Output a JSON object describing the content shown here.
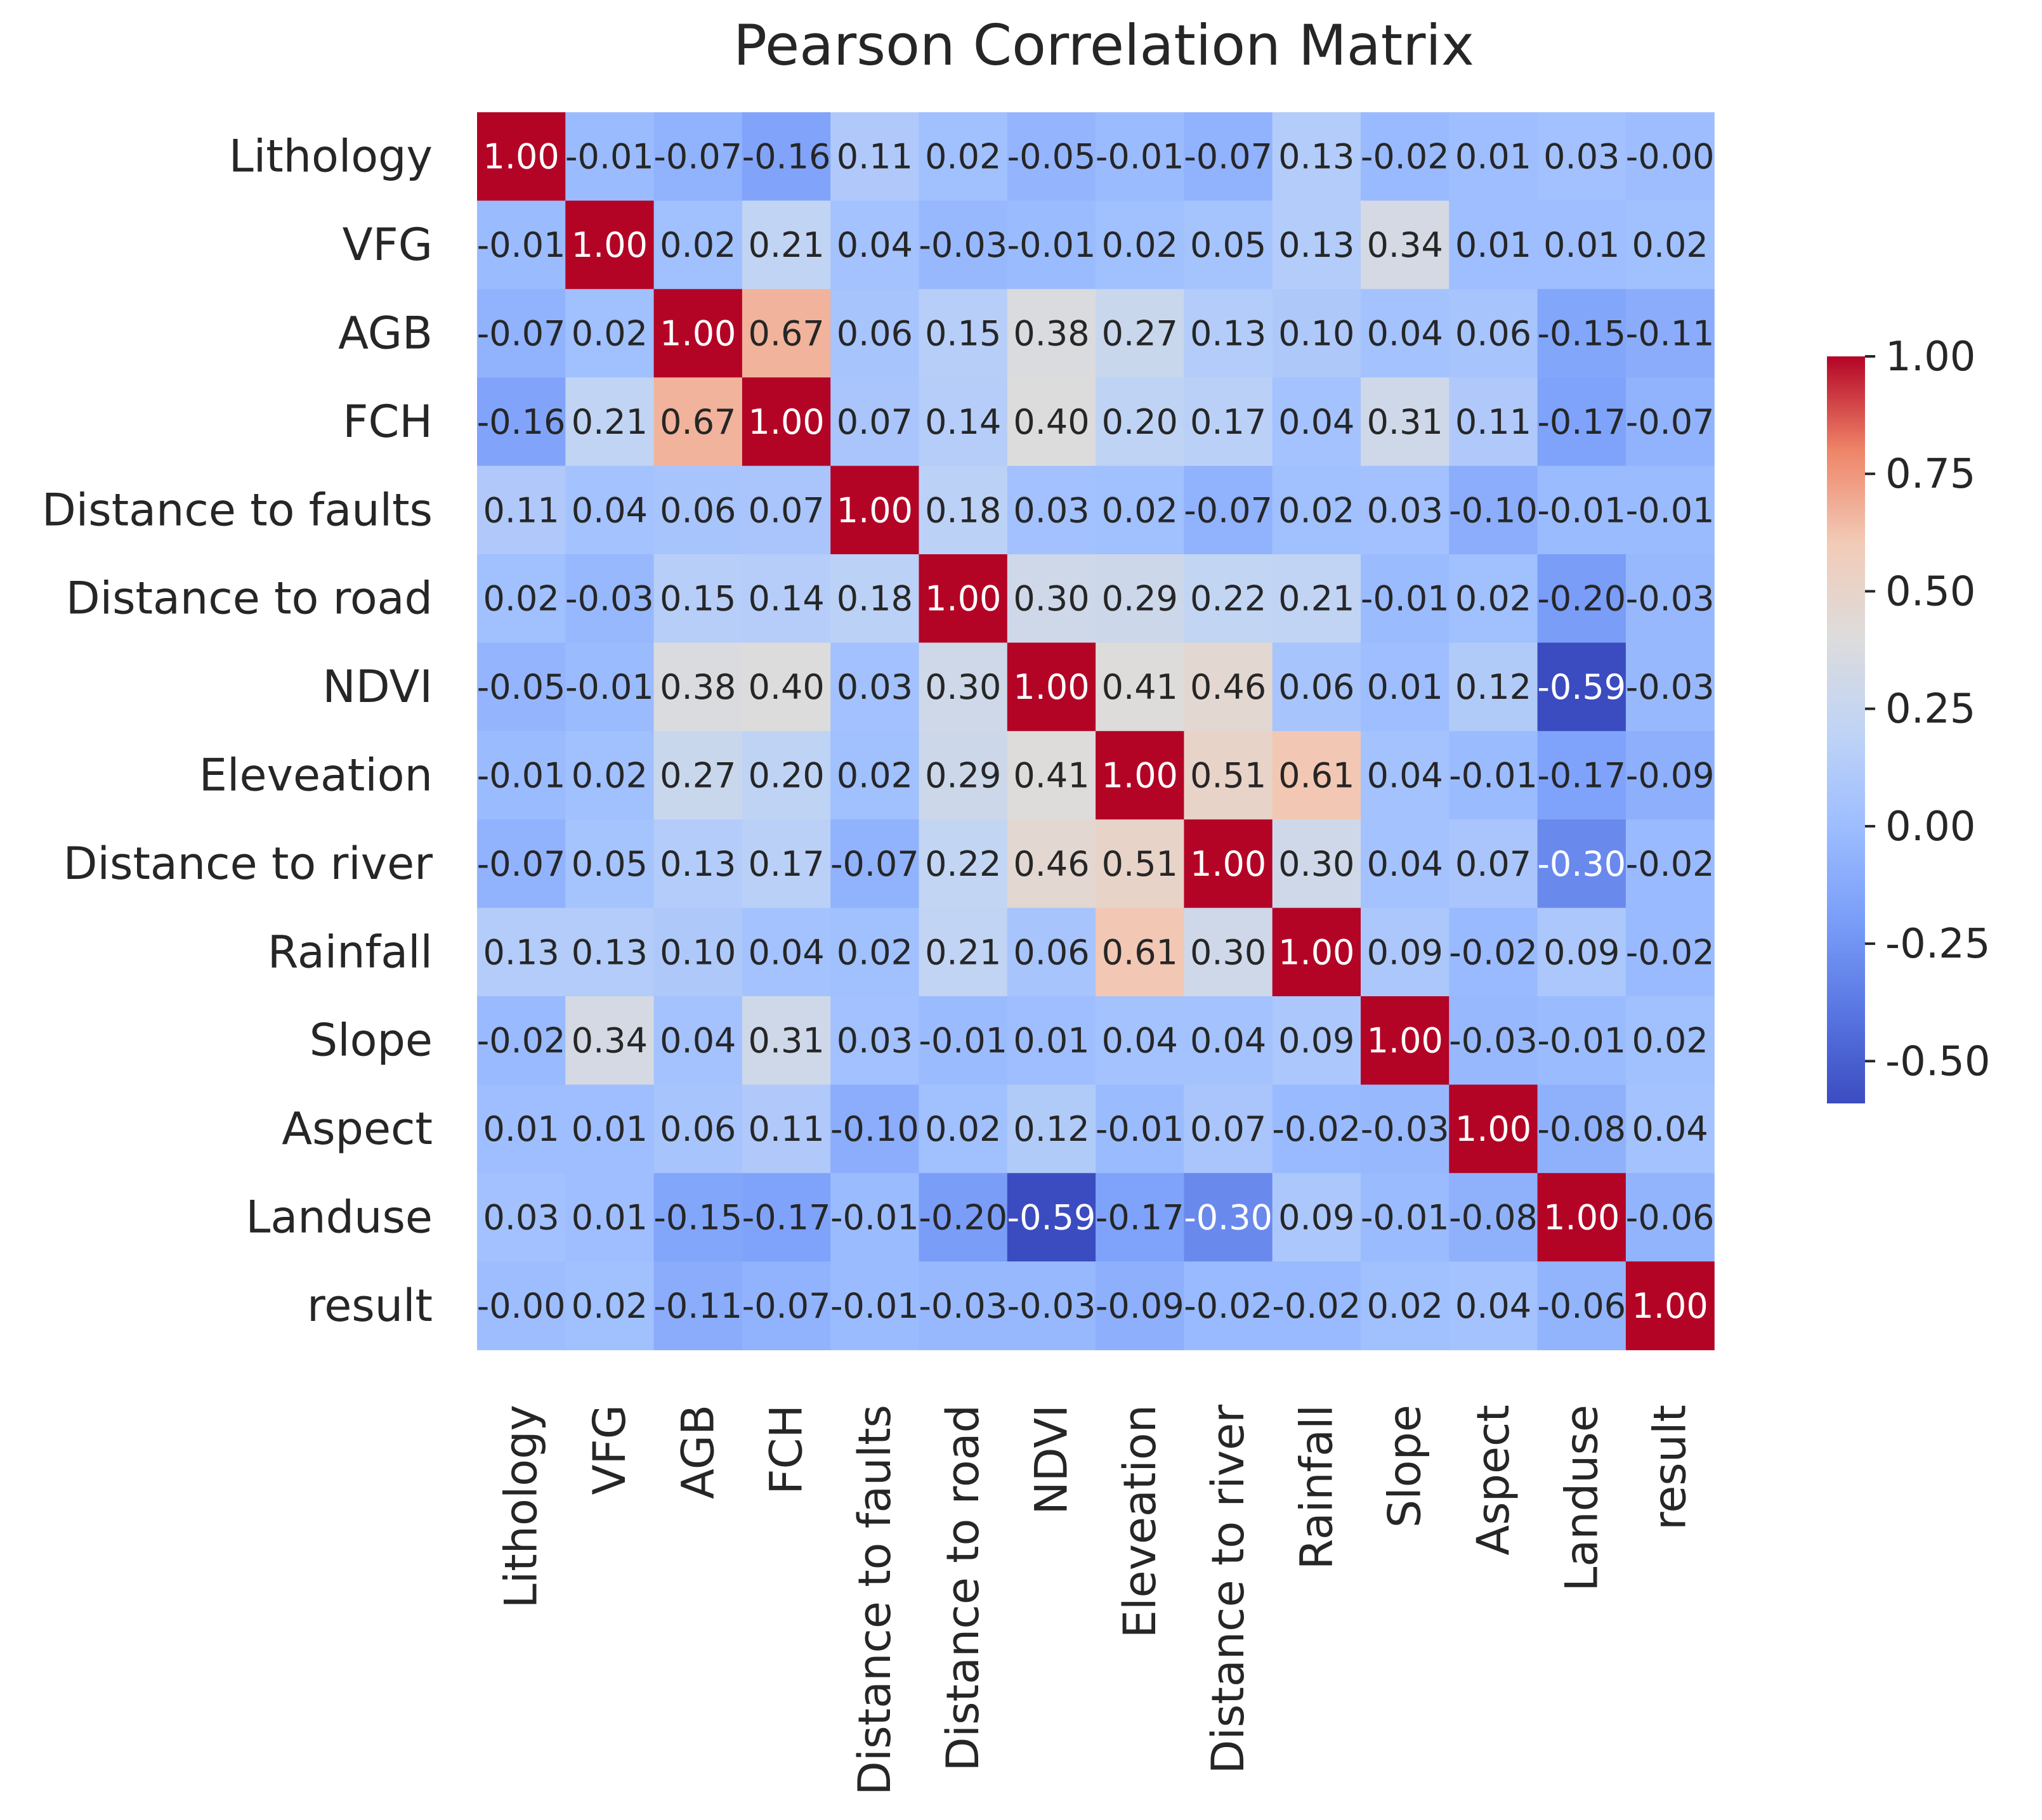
{
  "chart_data": {
    "type": "heatmap",
    "title": "Pearson Correlation Matrix",
    "labels": [
      "Lithology",
      "VFG",
      "AGB",
      "FCH",
      "Distance to faults",
      "Distance to road",
      "NDVI",
      "Eleveation",
      "Distance to river",
      "Rainfall",
      "Slope",
      "Aspect",
      "Landuse",
      "result"
    ],
    "values": [
      [
        1.0,
        -0.01,
        -0.07,
        -0.16,
        0.11,
        0.02,
        -0.05,
        -0.01,
        -0.07,
        0.13,
        -0.02,
        0.01,
        0.03,
        -0.0
      ],
      [
        -0.01,
        1.0,
        0.02,
        0.21,
        0.04,
        -0.03,
        -0.01,
        0.02,
        0.05,
        0.13,
        0.34,
        0.01,
        0.01,
        0.02
      ],
      [
        -0.07,
        0.02,
        1.0,
        0.67,
        0.06,
        0.15,
        0.38,
        0.27,
        0.13,
        0.1,
        0.04,
        0.06,
        -0.15,
        -0.11
      ],
      [
        -0.16,
        0.21,
        0.67,
        1.0,
        0.07,
        0.14,
        0.4,
        0.2,
        0.17,
        0.04,
        0.31,
        0.11,
        -0.17,
        -0.07
      ],
      [
        0.11,
        0.04,
        0.06,
        0.07,
        1.0,
        0.18,
        0.03,
        0.02,
        -0.07,
        0.02,
        0.03,
        -0.1,
        -0.01,
        -0.01
      ],
      [
        0.02,
        -0.03,
        0.15,
        0.14,
        0.18,
        1.0,
        0.3,
        0.29,
        0.22,
        0.21,
        -0.01,
        0.02,
        -0.2,
        -0.03
      ],
      [
        -0.05,
        -0.01,
        0.38,
        0.4,
        0.03,
        0.3,
        1.0,
        0.41,
        0.46,
        0.06,
        0.01,
        0.12,
        -0.59,
        -0.03
      ],
      [
        -0.01,
        0.02,
        0.27,
        0.2,
        0.02,
        0.29,
        0.41,
        1.0,
        0.51,
        0.61,
        0.04,
        -0.01,
        -0.17,
        -0.09
      ],
      [
        -0.07,
        0.05,
        0.13,
        0.17,
        -0.07,
        0.22,
        0.46,
        0.51,
        1.0,
        0.3,
        0.04,
        0.07,
        -0.3,
        -0.02
      ],
      [
        0.13,
        0.13,
        0.1,
        0.04,
        0.02,
        0.21,
        0.06,
        0.61,
        0.3,
        1.0,
        0.09,
        -0.02,
        0.09,
        -0.02
      ],
      [
        -0.02,
        0.34,
        0.04,
        0.31,
        0.03,
        -0.01,
        0.01,
        0.04,
        0.04,
        0.09,
        1.0,
        -0.03,
        -0.01,
        0.02
      ],
      [
        0.01,
        0.01,
        0.06,
        0.11,
        -0.1,
        0.02,
        0.12,
        -0.01,
        0.07,
        -0.02,
        -0.03,
        1.0,
        -0.08,
        0.04
      ],
      [
        0.03,
        0.01,
        -0.15,
        -0.17,
        -0.01,
        -0.2,
        -0.59,
        -0.17,
        -0.3,
        0.09,
        -0.01,
        -0.08,
        1.0,
        -0.06
      ],
      [
        -0.0,
        0.02,
        -0.11,
        -0.07,
        -0.01,
        -0.03,
        -0.03,
        -0.09,
        -0.02,
        -0.02,
        0.02,
        0.04,
        -0.06,
        1.0
      ]
    ],
    "colormap": "coolwarm",
    "vmin": -0.59,
    "vmax": 1.0,
    "colorbar_ticks": [
      "1.00",
      "0.75",
      "0.50",
      "0.25",
      "0.00",
      "-0.25",
      "-0.50"
    ],
    "colorbar_tick_values": [
      1.0,
      0.75,
      0.5,
      0.25,
      0.0,
      -0.25,
      -0.5
    ],
    "legend_position": "right"
  }
}
